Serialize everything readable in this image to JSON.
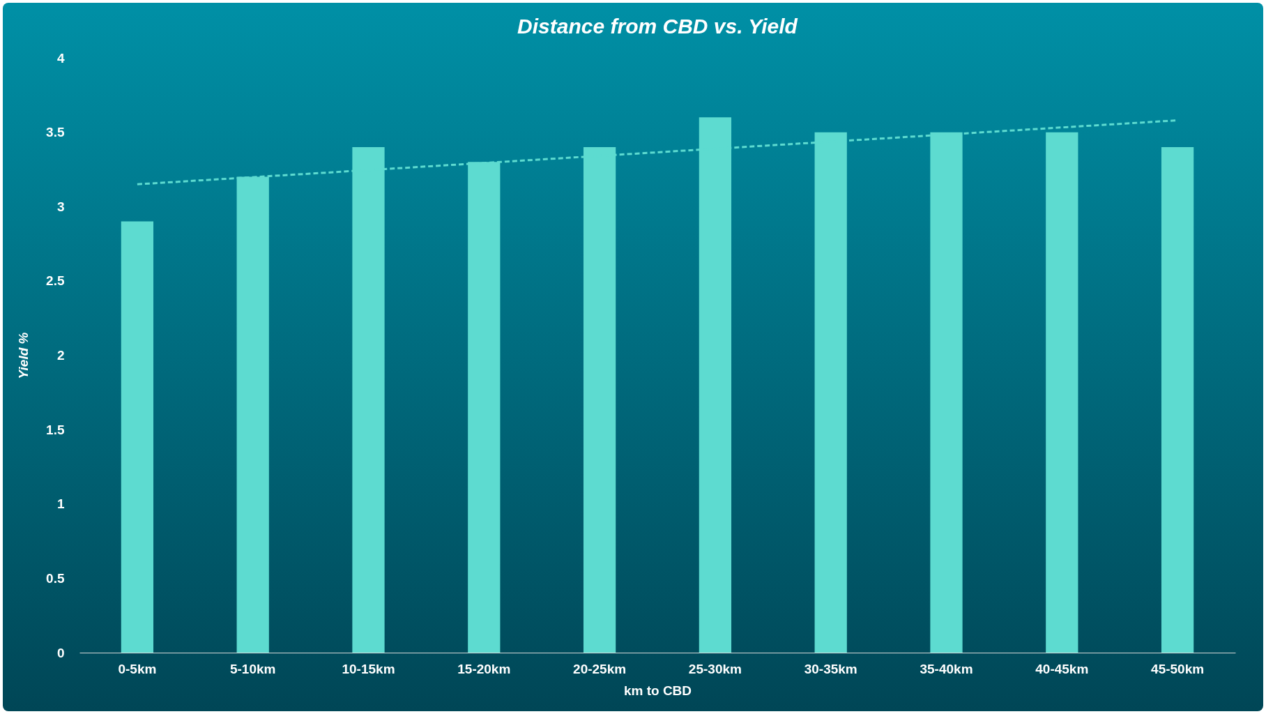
{
  "chart_data": {
    "type": "bar",
    "title": "Distance from CBD vs. Yield",
    "xlabel": "km to CBD",
    "ylabel": "Yield %",
    "categories": [
      "0-5km",
      "5-10km",
      "10-15km",
      "15-20km",
      "20-25km",
      "25-30km",
      "30-35km",
      "35-40km",
      "40-45km",
      "45-50km"
    ],
    "series": [
      {
        "color": "#5ddbd0",
        "values": [
          2.9,
          3.2,
          3.4,
          3.3,
          3.4,
          3.6,
          3.5,
          3.5,
          3.5,
          3.4
        ]
      },
      {
        "type": "line",
        "color": "#5ddbd0",
        "line_style": "dashed",
        "x": [
          "0-5km",
          "45-50km"
        ],
        "values": [
          3.15,
          3.58
        ]
      }
    ],
    "ylim": [
      0,
      4
    ],
    "yticks": [
      0,
      0.5,
      1,
      1.5,
      2,
      2.5,
      3,
      3.5,
      4
    ],
    "grid": false
  }
}
